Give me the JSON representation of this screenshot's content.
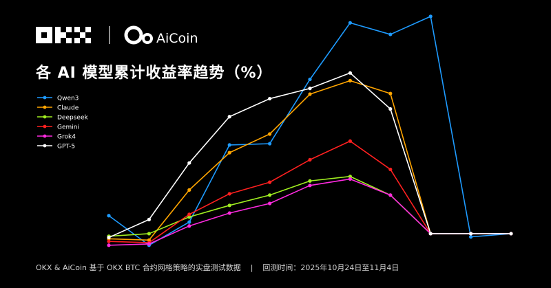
{
  "brand": {
    "okx": "OKX",
    "aicoin": "AiCoin"
  },
  "chart_data": {
    "type": "line",
    "title": "各 AI 模型累计收益率趋势（%）",
    "x": [
      0,
      1,
      2,
      3,
      4,
      5,
      6,
      7,
      8,
      9,
      10
    ],
    "ylim": [
      -30,
      340
    ],
    "grid": false,
    "legend_position": "top-left",
    "series": [
      {
        "name": "Qwen3",
        "color": "#1e9bff",
        "values": [
          28,
          -18,
          18,
          138,
          140,
          240,
          328,
          310,
          338,
          -5,
          0
        ]
      },
      {
        "name": "Claude",
        "color": "#ffa500",
        "values": [
          -8,
          -10,
          68,
          126,
          155,
          217,
          238,
          218,
          0,
          0,
          0
        ]
      },
      {
        "name": "Deepseek",
        "color": "#a0ee20",
        "values": [
          -4,
          0,
          26,
          44,
          60,
          82,
          89,
          60,
          0,
          0,
          0
        ]
      },
      {
        "name": "Gemini",
        "color": "#ff2020",
        "values": [
          -12,
          -14,
          30,
          62,
          80,
          115,
          144,
          100,
          0,
          0,
          0
        ]
      },
      {
        "name": "Grok4",
        "color": "#ff2ae0",
        "values": [
          -18,
          -16,
          12,
          32,
          47,
          75,
          85,
          60,
          0,
          0,
          0
        ]
      },
      {
        "name": "GPT-5",
        "color": "#ffffff",
        "values": [
          -6,
          22,
          110,
          182,
          210,
          226,
          250,
          194,
          0,
          0,
          0
        ]
      }
    ]
  },
  "footer": {
    "source": "OKX & AiCoin 基于 OKX BTC 合约网格策略的实盘测试数据",
    "separator": "|",
    "period": "回测时间：2025年10月24日至11月4日"
  }
}
